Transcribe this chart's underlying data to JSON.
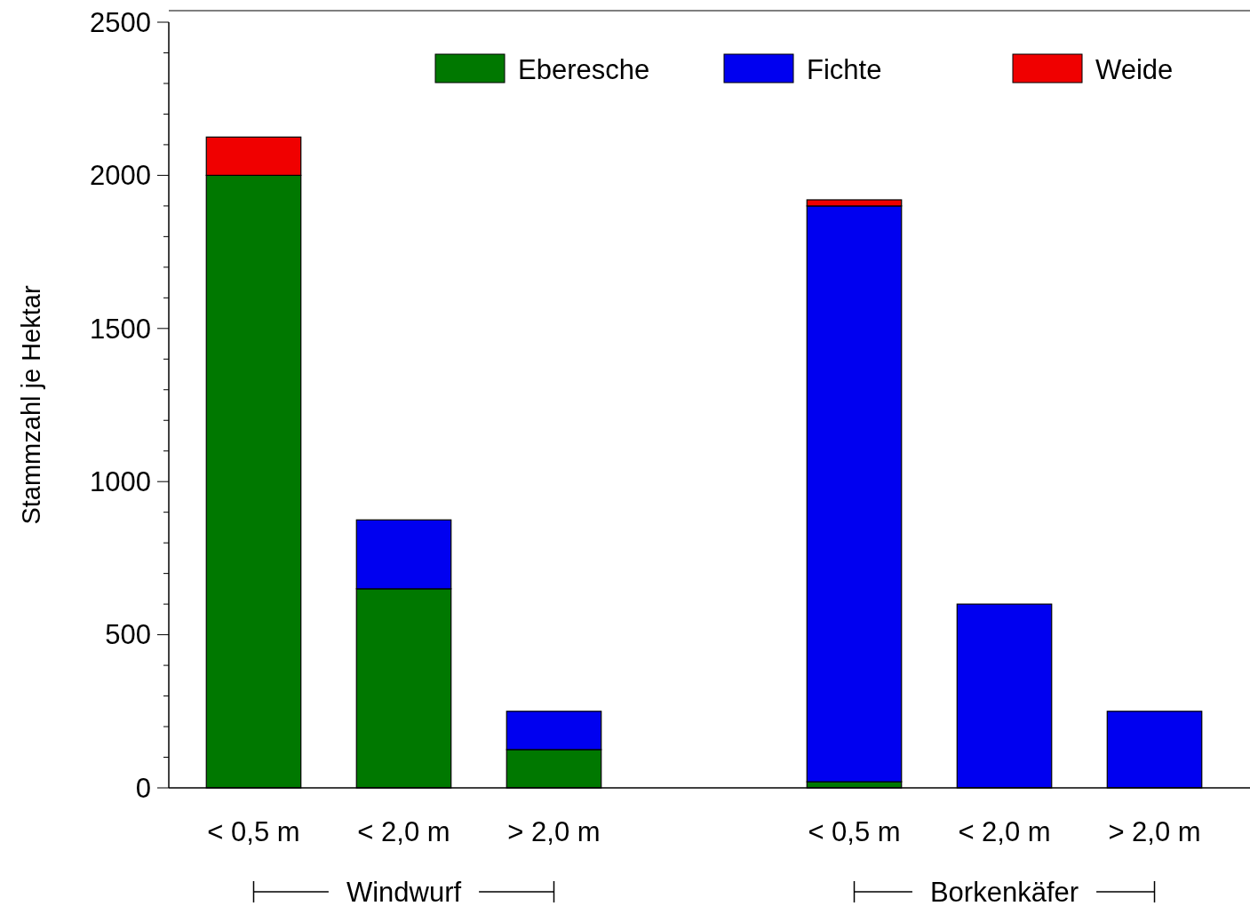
{
  "chart_data": {
    "type": "bar",
    "stacked": true,
    "ylabel": "Stammzahl je Hektar",
    "categories": [
      "< 0,5 m",
      "< 2,0 m",
      "> 2,0 m",
      null,
      "< 0,5 m",
      "< 2,0 m",
      "> 2,0 m"
    ],
    "series": [
      {
        "name": "Eberesche",
        "color": "#007800",
        "values": [
          2000,
          650,
          125,
          null,
          20,
          0,
          0
        ]
      },
      {
        "name": "Fichte",
        "color": "#0000f0",
        "values": [
          0,
          225,
          125,
          null,
          1880,
          600,
          250
        ]
      },
      {
        "name": "Weide",
        "color": "#f00000",
        "values": [
          125,
          0,
          0,
          null,
          20,
          0,
          0
        ]
      }
    ],
    "ylim": [
      0,
      2500
    ],
    "yticks": [
      0,
      {
        "value": 100,
        "label": null
      },
      {
        "value": 200,
        "label": null
      },
      {
        "value": 300,
        "label": null
      },
      {
        "value": 400,
        "label": null
      },
      500,
      {
        "value": 600,
        "label": null
      },
      {
        "value": 700,
        "label": null
      },
      {
        "value": 800,
        "label": null
      },
      {
        "value": 900,
        "label": null
      },
      1000,
      {
        "value": 1100,
        "label": null
      },
      {
        "value": 1200,
        "label": null
      },
      {
        "value": 1300,
        "label": null
      },
      {
        "value": 1400,
        "label": null
      },
      1500,
      {
        "value": 1600,
        "label": null
      },
      {
        "value": 1700,
        "label": null
      },
      {
        "value": 1800,
        "label": null
      },
      {
        "value": 1900,
        "label": null
      },
      2000,
      {
        "value": 2100,
        "label": null
      },
      {
        "value": 2200,
        "label": null
      },
      {
        "value": 2300,
        "label": null
      },
      {
        "value": 2400,
        "label": null
      },
      2500
    ],
    "legend": "top right",
    "annotations": [
      "Windwurf",
      "Borkenkäfer"
    ]
  }
}
